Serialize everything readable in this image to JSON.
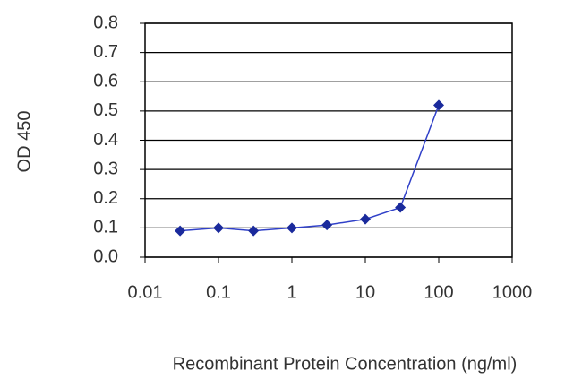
{
  "chart_data": {
    "type": "line",
    "x_label": "Recombinant Protein Concentration (ng/ml)",
    "y_label": "OD 450",
    "x": [
      0.03,
      0.1,
      0.3,
      1,
      3,
      10,
      30,
      100
    ],
    "series": [
      {
        "color": "#1a2a9c",
        "values": [
          0.09,
          0.1,
          0.09,
          0.1,
          0.11,
          0.13,
          0.17,
          0.52
        ]
      }
    ],
    "xlog": true,
    "xlim": [
      0.01,
      1000
    ],
    "xticks": [
      0.01,
      0.1,
      1,
      10,
      100,
      1000
    ],
    "ylim": [
      0,
      0.8
    ],
    "yticks": [
      {
        "value": 0,
        "label": "0.0"
      },
      0.1,
      0.2,
      0.3,
      0.4,
      0.5,
      0.6,
      0.7,
      0.8
    ],
    "grid": true
  }
}
